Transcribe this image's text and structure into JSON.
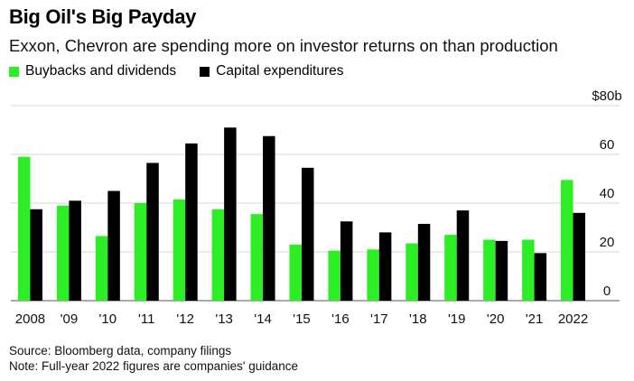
{
  "header": {
    "title": "Big Oil's Big Payday",
    "subtitle": "Exxon, Chevron are spending more on investor returns on than production"
  },
  "footer": {
    "source": "Source: Bloomberg data, company filings",
    "note": "Note: Full-year 2022 figures are companies' guidance"
  },
  "colors": {
    "buybacks": "#2bef24",
    "capex": "#000000",
    "grid": "#d4d4d4"
  },
  "chart_data": {
    "type": "bar",
    "title": "Big Oil's Big Payday",
    "categories": [
      "2008",
      "'09",
      "'10",
      "'11",
      "'12",
      "'13",
      "'14",
      "'15",
      "'16",
      "'17",
      "'18",
      "'19",
      "'20",
      "'21",
      "2022"
    ],
    "series": [
      {
        "name": "Buybacks and dividends",
        "values": [
          59,
          39,
          26.5,
          40,
          41.5,
          37.5,
          35.5,
          23,
          20.5,
          21,
          23.5,
          27,
          25,
          25,
          49.5
        ]
      },
      {
        "name": "Capital expenditures",
        "values": [
          37.5,
          41,
          45,
          56.5,
          64.5,
          71,
          67.5,
          54.5,
          32.5,
          28,
          31.5,
          37,
          24.5,
          19.5,
          36
        ]
      }
    ],
    "ylim": [
      0,
      80
    ],
    "yticks": [
      "0",
      "20",
      "40",
      "60",
      "$80b"
    ],
    "ytick_values": [
      0,
      20,
      40,
      60,
      80
    ],
    "grid": true,
    "legend_position": "top-left"
  }
}
